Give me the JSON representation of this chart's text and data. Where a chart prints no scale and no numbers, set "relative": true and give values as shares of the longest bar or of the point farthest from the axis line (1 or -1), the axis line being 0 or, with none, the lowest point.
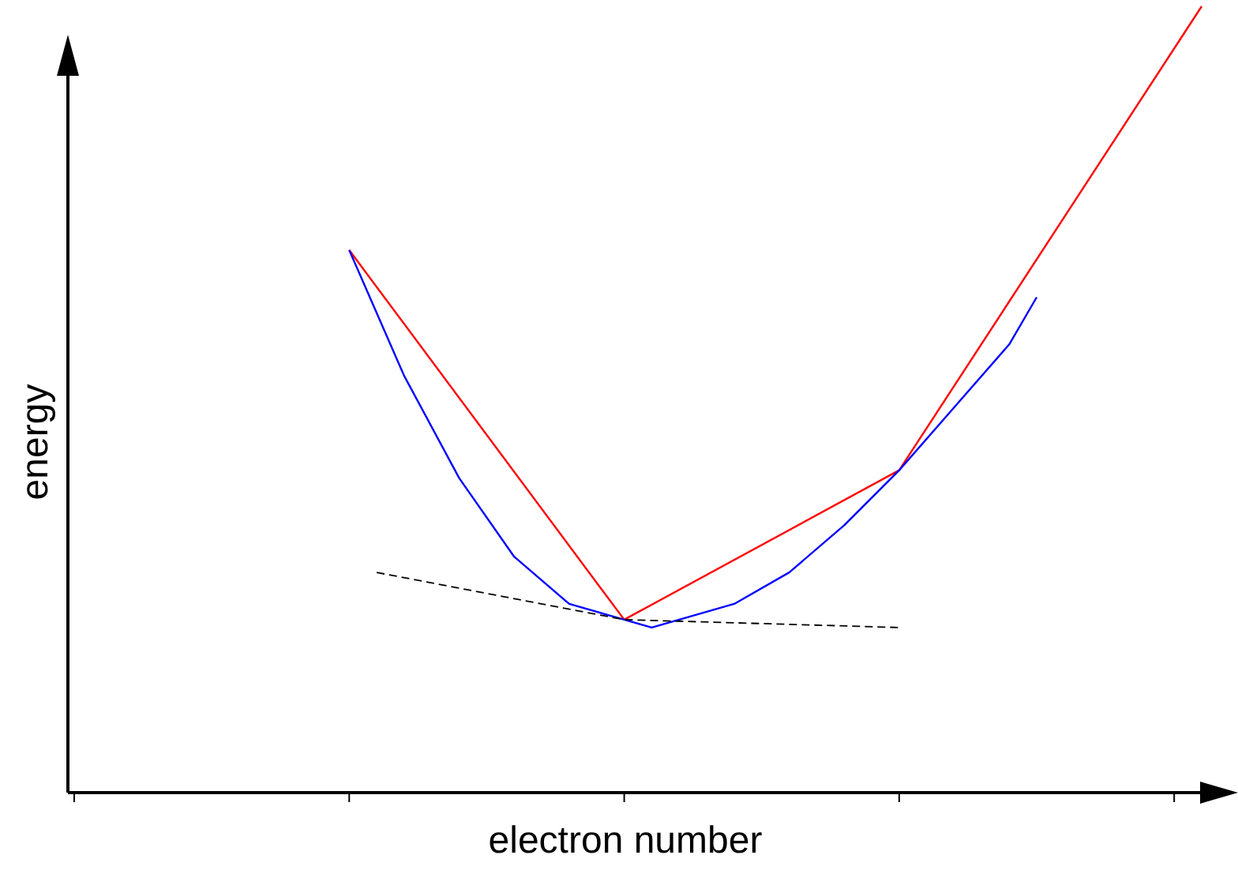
{
  "chart_data": {
    "type": "line",
    "relative": true,
    "xlabel": "electron number",
    "ylabel": "energy",
    "categories": [
      null,
      null,
      null,
      null,
      null,
      null,
      null,
      null,
      null,
      null,
      null,
      null,
      null,
      null,
      null,
      null,
      null,
      null,
      null,
      null,
      null,
      null,
      null,
      null,
      null,
      null,
      null,
      null,
      null,
      null,
      null,
      null,
      null,
      null,
      null,
      null,
      null,
      null,
      null,
      null,
      null,
      null
    ],
    "series": [
      {
        "color": "#ff0000",
        "values": [
          null,
          null,
          null,
          null,
          null,
          null,
          null,
          null,
          null,
          null,
          0.69,
          null,
          null,
          null,
          null,
          null,
          null,
          null,
          null,
          null,
          0.22,
          null,
          null,
          null,
          null,
          null,
          null,
          null,
          null,
          null,
          0.41,
          null,
          null,
          null,
          null,
          null,
          null,
          null,
          null,
          null,
          null,
          1.0
        ]
      },
      {
        "color": "#0000ff",
        "values": [
          null,
          null,
          null,
          null,
          null,
          null,
          null,
          null,
          null,
          null,
          0.69,
          null,
          0.53,
          null,
          0.4,
          null,
          0.3,
          null,
          0.24,
          null,
          0.22,
          0.21,
          0.22,
          null,
          0.24,
          null,
          0.28,
          null,
          0.34,
          null,
          0.41,
          null,
          0.49,
          null,
          0.57,
          0.63,
          null,
          null,
          null,
          null,
          null,
          null
        ]
      },
      {
        "color": "#000000",
        "line_style": "dashed",
        "values": [
          null,
          null,
          null,
          null,
          null,
          null,
          null,
          null,
          null,
          null,
          null,
          0.28,
          null,
          null,
          null,
          null,
          null,
          null,
          null,
          null,
          0.22,
          null,
          null,
          null,
          null,
          null,
          null,
          null,
          null,
          null,
          0.21,
          null,
          null,
          null,
          null,
          null,
          null,
          null,
          null,
          null,
          null,
          null
        ]
      }
    ]
  }
}
